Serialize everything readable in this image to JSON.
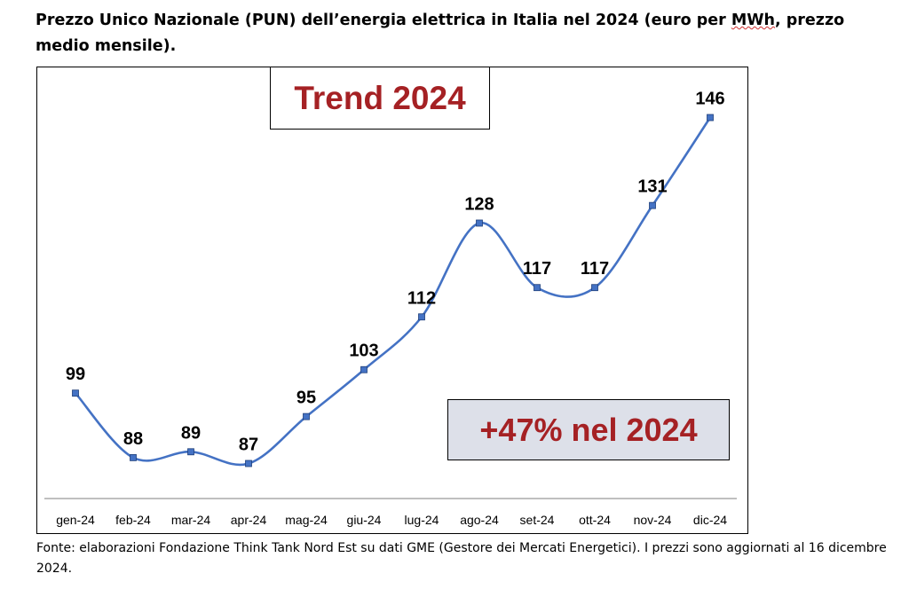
{
  "title_part1": "Prezzo Unico Nazionale (PUN) dell’energia elettrica in Italia nel 2024 (euro per ",
  "title_mwh": "MWh",
  "title_part2": ", prezzo medio mensile).",
  "trend_label": "Trend 2024",
  "change_label": "+47% nel 2024",
  "source_note": "Fonte: elaborazioni Fondazione Think Tank Nord Est su dati GME (Gestore dei Mercati Energetici). I prezzi sono aggiornati al 16 dicembre 2024.",
  "colors": {
    "line": "#4472c4",
    "marker": "#4472c4",
    "accent_text": "#a52124",
    "callout_fill": "#dde0e9"
  },
  "chart_data": {
    "type": "line",
    "categories": [
      "gen-24",
      "feb-24",
      "mar-24",
      "apr-24",
      "mag-24",
      "giu-24",
      "lug-24",
      "ago-24",
      "set-24",
      "ott-24",
      "nov-24",
      "dic-24"
    ],
    "series": [
      {
        "values": [
          99,
          88,
          89,
          87,
          95,
          103,
          112,
          128,
          117,
          117,
          131,
          146
        ]
      }
    ],
    "data_labels": [
      "99",
      "88",
      "89",
      "87",
      "95",
      "103",
      "112",
      "128",
      "117",
      "117",
      "131",
      "146"
    ],
    "smoothed": true,
    "markers": "square",
    "grid": false,
    "legend": "none",
    "xlabel": "",
    "ylabel": ""
  }
}
